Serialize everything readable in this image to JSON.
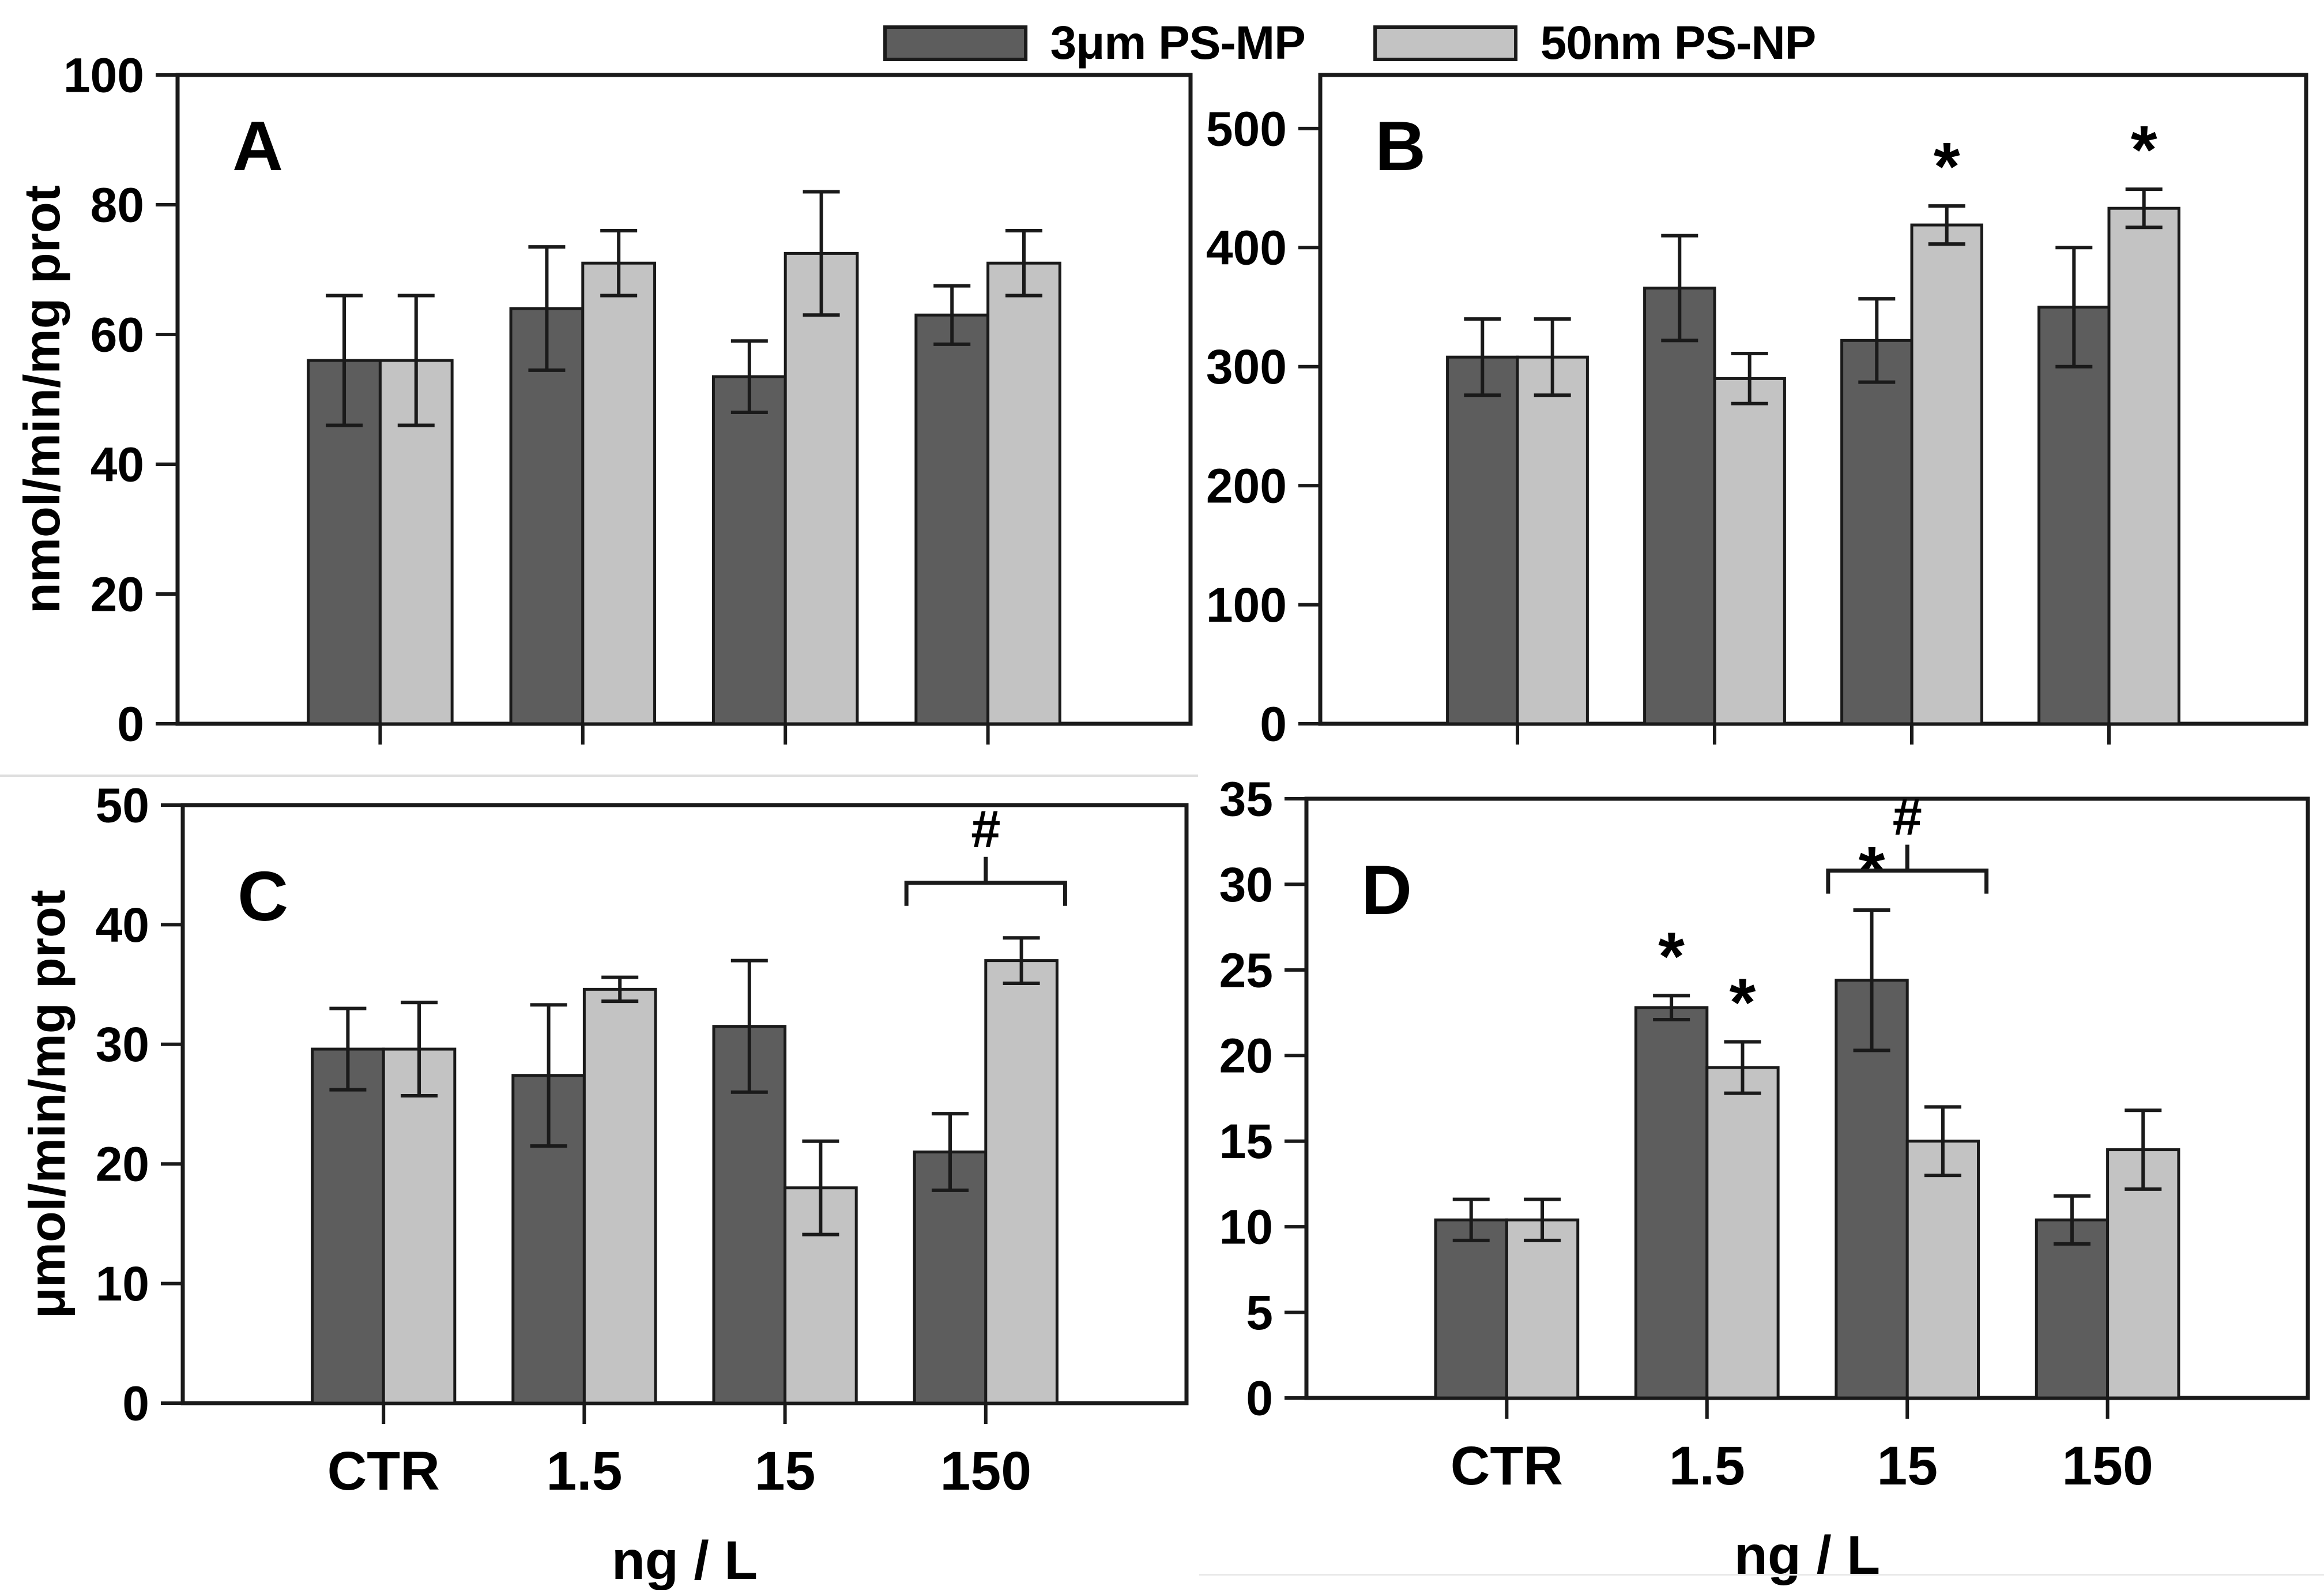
{
  "legend": {
    "items": [
      {
        "id": "mp",
        "label": "3μm PS-MP",
        "color": "#5d5d5d"
      },
      {
        "id": "np",
        "label": "50nm PS-NP",
        "color": "#c3c3c3"
      }
    ]
  },
  "chart_data": {
    "type": "bar",
    "categories": [
      "CTR",
      "1.5",
      "15",
      "150"
    ],
    "xlabel": "ng / L",
    "legend_position": "top",
    "grid": false,
    "bar_colors": {
      "mp": "#5d5d5d",
      "np": "#c3c3c3"
    },
    "error_bars": true,
    "panels": [
      {
        "id": "A",
        "label": "A",
        "ylabel": "nmol/min/mg prot",
        "ylim": [
          0,
          100
        ],
        "yticks": [
          0,
          20,
          40,
          60,
          80,
          100
        ],
        "show_xticklabels": false,
        "series": [
          {
            "name": "3μm PS-MP",
            "values": [
              56,
              64,
              53.5,
              63
            ],
            "errors": [
              10,
              9.5,
              5.5,
              4.5
            ]
          },
          {
            "name": "50nm PS-NP",
            "values": [
              56,
              71,
              72.5,
              71
            ],
            "errors": [
              10,
              5,
              9.5,
              5
            ]
          }
        ],
        "sig_marks": [],
        "bracket": null
      },
      {
        "id": "B",
        "label": "B",
        "ylabel": "",
        "ylim": [
          0,
          545
        ],
        "yticks": [
          0,
          100,
          200,
          300,
          400,
          500
        ],
        "show_xticklabels": false,
        "series": [
          {
            "name": "3μm PS-MP",
            "values": [
              308,
              366,
              322,
              350
            ],
            "errors": [
              32,
              44,
              35,
              50
            ]
          },
          {
            "name": "50nm PS-NP",
            "values": [
              308,
              290,
              419,
              433
            ],
            "errors": [
              32,
              21,
              16,
              16
            ]
          }
        ],
        "sig_marks": [
          {
            "series": 1,
            "group": 2,
            "symbol": "*"
          },
          {
            "series": 1,
            "group": 3,
            "symbol": "*"
          }
        ],
        "bracket": null
      },
      {
        "id": "C",
        "label": "C",
        "ylabel": "μmol/min/mg prot",
        "ylim": [
          0,
          50
        ],
        "yticks": [
          0,
          10,
          20,
          30,
          40,
          50
        ],
        "show_xticklabels": true,
        "series": [
          {
            "name": "3μm PS-MP",
            "values": [
              29.6,
              27.4,
              31.5,
              21
            ],
            "errors": [
              3.4,
              5.9,
              5.5,
              3.2
            ]
          },
          {
            "name": "50nm PS-NP",
            "values": [
              29.6,
              34.6,
              18,
              37
            ],
            "errors": [
              3.9,
              1,
              3.9,
              1.9
            ]
          }
        ],
        "sig_marks": [],
        "bracket": {
          "group": 3,
          "symbol": "#",
          "y": 43.5
        }
      },
      {
        "id": "D",
        "label": "D",
        "ylabel": "",
        "ylim": [
          0,
          35
        ],
        "yticks": [
          0,
          5,
          10,
          15,
          20,
          25,
          30,
          35
        ],
        "show_xticklabels": true,
        "series": [
          {
            "name": "3μm PS-MP",
            "values": [
              10.4,
              22.8,
              24.4,
              10.4
            ],
            "errors": [
              1.2,
              0.7,
              4.1,
              1.4
            ]
          },
          {
            "name": "50nm PS-NP",
            "values": [
              10.4,
              19.3,
              15,
              14.5
            ],
            "errors": [
              1.2,
              1.5,
              2,
              2.3
            ]
          }
        ],
        "sig_marks": [
          {
            "series": 0,
            "group": 1,
            "symbol": "*"
          },
          {
            "series": 1,
            "group": 1,
            "symbol": "*"
          },
          {
            "series": 0,
            "group": 2,
            "symbol": "*"
          }
        ],
        "bracket": {
          "group": 2,
          "symbol": "#",
          "y": 30.8
        }
      }
    ]
  }
}
